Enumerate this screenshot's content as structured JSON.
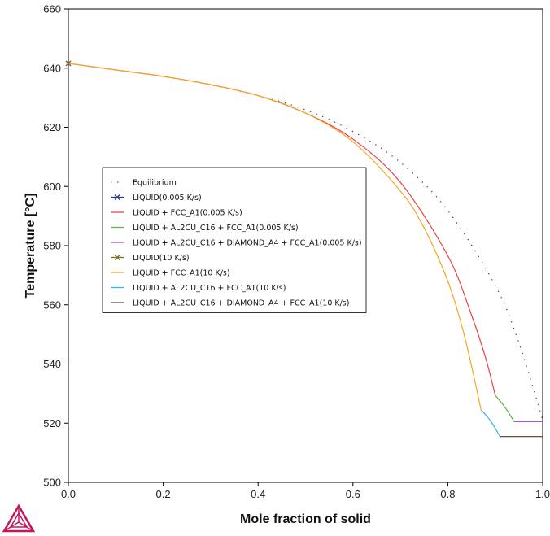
{
  "chart_data": {
    "type": "line",
    "title": "",
    "xlabel": "Mole fraction of solid",
    "ylabel": "Temperature [°C]",
    "xlim": [
      0,
      1
    ],
    "ylim": [
      500,
      660
    ],
    "xticks": [
      0.0,
      0.2,
      0.4,
      0.6,
      0.8,
      1.0
    ],
    "xtick_labels": [
      "0.0",
      "0.2",
      "0.4",
      "0.6",
      "0.8",
      "1.0"
    ],
    "yticks": [
      500,
      520,
      540,
      560,
      580,
      600,
      620,
      640,
      660
    ],
    "ytick_labels": [
      "500",
      "520",
      "540",
      "560",
      "580",
      "600",
      "620",
      "640",
      "660"
    ],
    "grid": false,
    "legend_position": "center-left",
    "series": [
      {
        "name": "Equilibrium",
        "color": "#333333",
        "style": "dotted",
        "x": [
          0,
          0.1,
          0.2,
          0.3,
          0.4,
          0.5,
          0.6,
          0.7,
          0.8,
          0.9,
          0.95,
          1.0
        ],
        "y": [
          641.6,
          639.4,
          637.2,
          634.3,
          630.7,
          625.9,
          618.6,
          608.1,
          591.9,
          566.5,
          547.1,
          521.2
        ]
      },
      {
        "name": "LIQUID(0.005 K/s)",
        "color": "#1f3a93",
        "style": "marker",
        "x": [
          0,
          0.004
        ],
        "y": [
          641.6,
          641.6
        ]
      },
      {
        "name": "LIQUID + FCC_A1(0.005 K/s)",
        "color": "#e8424a",
        "style": "solid",
        "x": [
          0,
          0.1,
          0.2,
          0.3,
          0.4,
          0.5,
          0.6,
          0.7,
          0.8,
          0.85,
          0.88,
          0.9
        ],
        "y": [
          641.6,
          639.4,
          637.2,
          634.4,
          630.7,
          624.8,
          616.0,
          601.4,
          576.6,
          556.5,
          541.9,
          529.4
        ]
      },
      {
        "name": "LIQUID + AL2CU_C16 + FCC_A1(0.005 K/s)",
        "color": "#5ab848",
        "style": "solid",
        "x": [
          0.9,
          0.92,
          0.94
        ],
        "y": [
          529.4,
          525.5,
          520.5
        ]
      },
      {
        "name": "LIQUID + AL2CU_C16 + DIAMOND_A4 + FCC_A1(0.005 K/s)",
        "color": "#b54fd0",
        "style": "solid",
        "x": [
          0.94,
          1.0
        ],
        "y": [
          520.5,
          520.5
        ]
      },
      {
        "name": "LIQUID(10 K/s)",
        "color": "#8a6a1e",
        "style": "marker",
        "x": [
          0,
          0.004
        ],
        "y": [
          641.6,
          641.6
        ]
      },
      {
        "name": "LIQUID + FCC_A1(10 K/s)",
        "color": "#f5a623",
        "style": "solid",
        "x": [
          0,
          0.1,
          0.2,
          0.3,
          0.4,
          0.5,
          0.6,
          0.7,
          0.75,
          0.8,
          0.83,
          0.85,
          0.87
        ],
        "y": [
          641.6,
          639.4,
          637.2,
          634.4,
          630.7,
          624.8,
          615.1,
          598.5,
          586.0,
          568.0,
          552.6,
          539.3,
          524.5
        ]
      },
      {
        "name": "LIQUID + AL2CU_C16 + FCC_A1(10 K/s)",
        "color": "#3bb4e5",
        "style": "solid",
        "x": [
          0.87,
          0.89,
          0.91
        ],
        "y": [
          524.5,
          520.8,
          515.5
        ]
      },
      {
        "name": "LIQUID + AL2CU_C16 + DIAMOND_A4 + FCC_A1(10 K/s)",
        "color": "#6b4e3d",
        "style": "solid",
        "x": [
          0.91,
          1.0
        ],
        "y": [
          515.5,
          515.5
        ]
      }
    ]
  },
  "logo": {
    "name": "thermo-calc-logo",
    "color": "#c2185b"
  }
}
